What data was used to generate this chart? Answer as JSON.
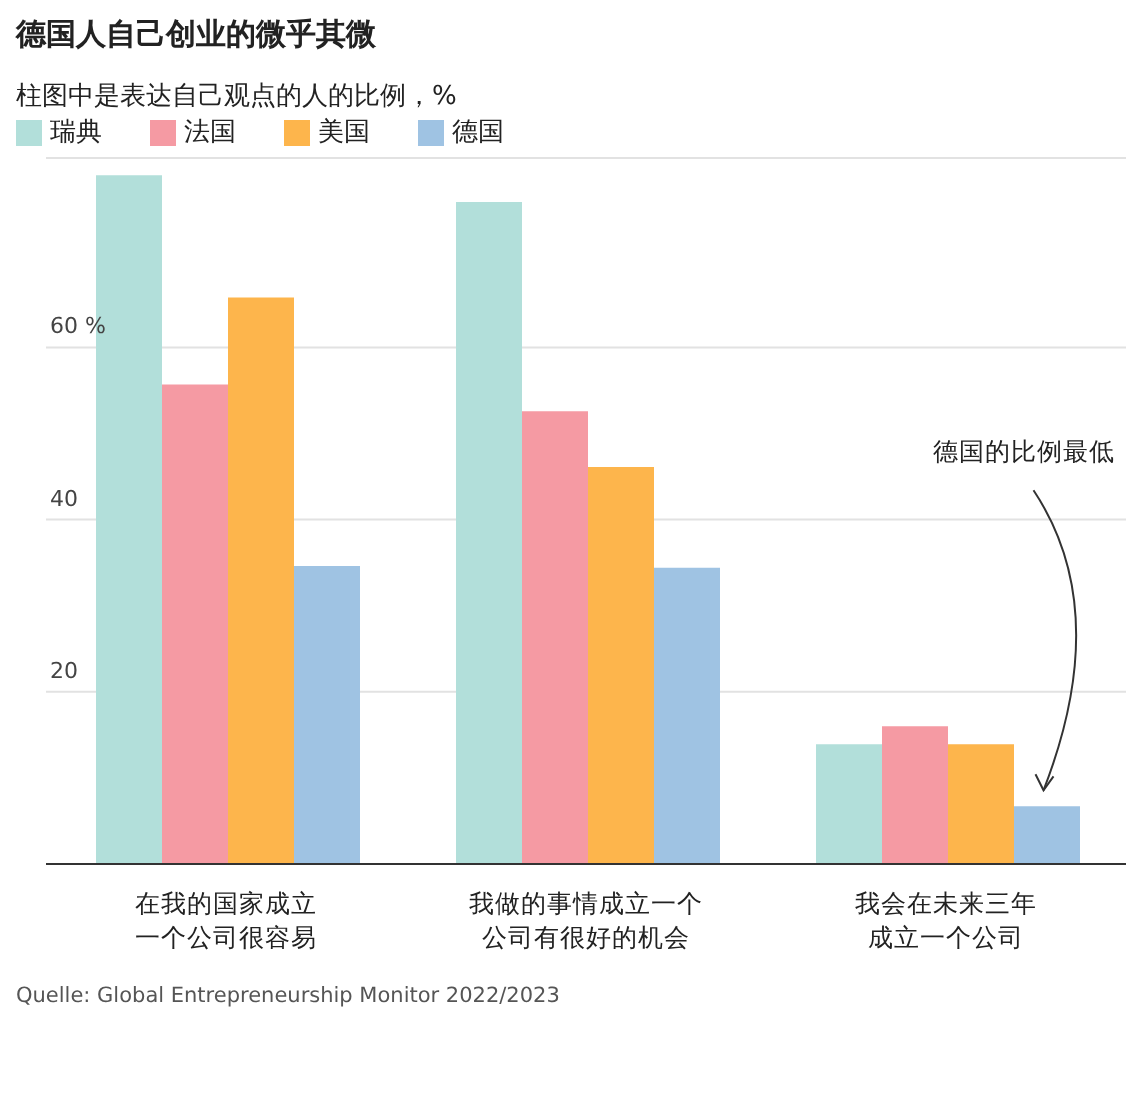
{
  "chart_data": {
    "type": "bar",
    "title": "德国人自己创业的微乎其微",
    "subtitle": "柱图中是表达自己观点的人的比例，%",
    "categories": [
      "在我的国家成立一个公司很容易",
      "我做的事情成立一个公司有很好的机会",
      "我会在未来三年成立一个公司"
    ],
    "series": [
      {
        "name": "瑞典",
        "color": "#b2dfda",
        "values": [
          80.0,
          76.9,
          13.9
        ]
      },
      {
        "name": "法国",
        "color": "#f59aa3",
        "values": [
          55.7,
          52.6,
          16.0
        ]
      },
      {
        "name": "美国",
        "color": "#fdb54c",
        "values": [
          65.8,
          46.1,
          13.9
        ]
      },
      {
        "name": "德国",
        "color": "#9fc3e3",
        "values": [
          34.6,
          34.4,
          6.7
        ]
      }
    ],
    "ylim": [
      0,
      82
    ],
    "yticks": [
      20,
      40,
      {
        "value": 60,
        "label": "60 %"
      }
    ],
    "grid": "y",
    "legend": "top left",
    "annotations": [
      "德国的比例最低",
      "Quelle: Global Entrepreneurship Monitor 2022/2023"
    ]
  }
}
